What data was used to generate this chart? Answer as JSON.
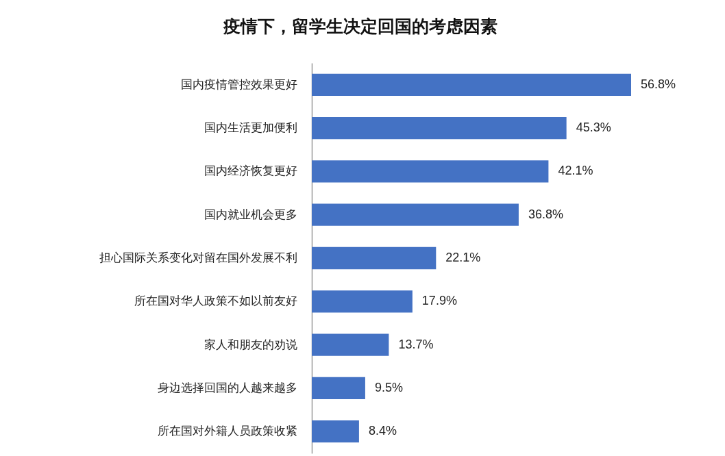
{
  "chart_data": {
    "type": "bar",
    "orientation": "horizontal",
    "title": "疫情下，留学生决定回国的考虑因素",
    "categories": [
      "国内疫情管控效果更好",
      "国内生活更加便利",
      "国内经济恢复更好",
      "国内就业机会更多",
      "担心国际关系变化对留在国外发展不利",
      "所在国对华人政策不如以前友好",
      "家人和朋友的劝说",
      "身边选择回国的人越来越多",
      "所在国对外籍人员政策收紧"
    ],
    "values": [
      56.8,
      45.3,
      42.1,
      36.8,
      22.1,
      17.9,
      13.7,
      9.5,
      8.4
    ],
    "value_labels": [
      "56.8%",
      "45.3%",
      "42.1%",
      "36.8%",
      "22.1%",
      "17.9%",
      "13.7%",
      "9.5%",
      "8.4%"
    ],
    "color": "#4472c4"
  }
}
